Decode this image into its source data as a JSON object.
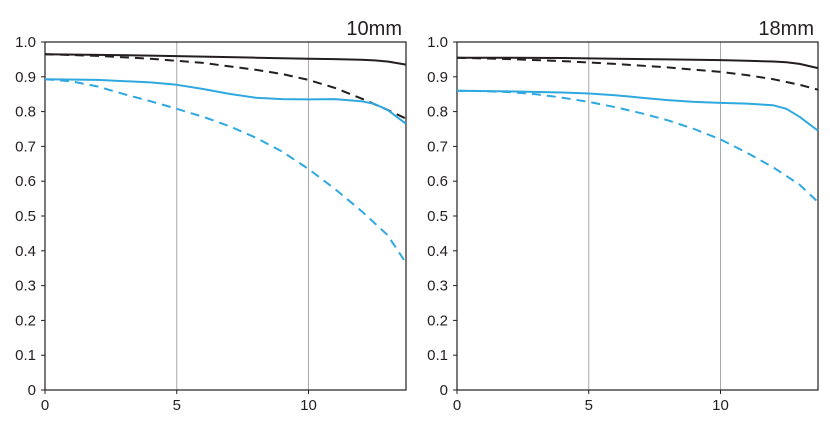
{
  "chart_data": [
    {
      "type": "line",
      "title": "10mm",
      "xlabel": "",
      "ylabel": "",
      "xlim": [
        0,
        13.7
      ],
      "ylim": [
        0,
        1.0
      ],
      "x_ticks": [
        0,
        5,
        10
      ],
      "y_ticks": [
        0,
        0.1,
        0.2,
        0.3,
        0.4,
        0.5,
        0.6,
        0.7,
        0.8,
        0.9,
        1.0
      ],
      "y_tick_labels": [
        "0",
        "0.1",
        "0.2",
        "0.3",
        "0.4",
        "0.5",
        "0.6",
        "0.7",
        "0.8",
        "0.9",
        "1.0"
      ],
      "grid": true,
      "series": [
        {
          "color": "#231f20",
          "dash": "solid",
          "x": [
            0,
            2,
            4,
            6,
            8,
            10,
            11,
            12,
            12.5,
            13,
            13.7
          ],
          "y": [
            0.965,
            0.963,
            0.961,
            0.958,
            0.955,
            0.952,
            0.951,
            0.949,
            0.947,
            0.944,
            0.935
          ]
        },
        {
          "color": "#231f20",
          "dash": "dashed",
          "x": [
            0,
            2,
            4,
            6,
            8,
            9,
            10,
            11,
            12,
            13,
            13.7
          ],
          "y": [
            0.965,
            0.96,
            0.952,
            0.94,
            0.92,
            0.908,
            0.891,
            0.868,
            0.838,
            0.805,
            0.78
          ]
        },
        {
          "color": "#2fa8e0",
          "dash": "solid",
          "x": [
            0,
            2,
            4,
            5,
            6,
            7,
            8,
            9,
            10,
            11,
            12,
            12.5,
            13,
            13.7
          ],
          "y": [
            0.893,
            0.891,
            0.884,
            0.877,
            0.865,
            0.851,
            0.84,
            0.836,
            0.835,
            0.836,
            0.83,
            0.822,
            0.805,
            0.765
          ]
        },
        {
          "color": "#2fa8e0",
          "dash": "dashed",
          "x": [
            0,
            1,
            2,
            3,
            4,
            5,
            6,
            7,
            8,
            9,
            10,
            11,
            12,
            13,
            13.7
          ],
          "y": [
            0.893,
            0.887,
            0.872,
            0.85,
            0.83,
            0.808,
            0.785,
            0.758,
            0.725,
            0.685,
            0.635,
            0.578,
            0.515,
            0.445,
            0.365
          ]
        }
      ]
    },
    {
      "type": "line",
      "title": "18mm",
      "xlabel": "",
      "ylabel": "",
      "xlim": [
        0,
        13.7
      ],
      "ylim": [
        0,
        1.0
      ],
      "x_ticks": [
        0,
        5,
        10
      ],
      "y_ticks": [
        0,
        0.1,
        0.2,
        0.3,
        0.4,
        0.5,
        0.6,
        0.7,
        0.8,
        0.9,
        1.0
      ],
      "y_tick_labels": [
        "0",
        "0.1",
        "0.2",
        "0.3",
        "0.4",
        "0.5",
        "0.6",
        "0.7",
        "0.8",
        "0.9",
        "1.0"
      ],
      "grid": true,
      "series": [
        {
          "color": "#231f20",
          "dash": "solid",
          "x": [
            0,
            2,
            4,
            6,
            8,
            10,
            11,
            12,
            12.5,
            13,
            13.7
          ],
          "y": [
            0.955,
            0.955,
            0.954,
            0.952,
            0.95,
            0.948,
            0.946,
            0.944,
            0.942,
            0.937,
            0.925
          ]
        },
        {
          "color": "#231f20",
          "dash": "dashed",
          "x": [
            0,
            2,
            4,
            6,
            8,
            10,
            11,
            12,
            13,
            13.7
          ],
          "y": [
            0.955,
            0.951,
            0.945,
            0.937,
            0.927,
            0.914,
            0.905,
            0.893,
            0.877,
            0.863
          ]
        },
        {
          "color": "#2fa8e0",
          "dash": "solid",
          "x": [
            0,
            2,
            4,
            5,
            6,
            7,
            8,
            9,
            10,
            11,
            12,
            12.5,
            13,
            13.7
          ],
          "y": [
            0.86,
            0.858,
            0.855,
            0.852,
            0.847,
            0.84,
            0.833,
            0.828,
            0.825,
            0.823,
            0.818,
            0.808,
            0.785,
            0.745
          ]
        },
        {
          "color": "#2fa8e0",
          "dash": "dashed",
          "x": [
            0,
            1,
            2,
            3,
            4,
            5,
            6,
            7,
            8,
            9,
            10,
            11,
            12,
            13,
            13.7
          ],
          "y": [
            0.86,
            0.859,
            0.856,
            0.85,
            0.84,
            0.828,
            0.813,
            0.795,
            0.775,
            0.75,
            0.72,
            0.682,
            0.64,
            0.59,
            0.54
          ]
        }
      ]
    }
  ]
}
